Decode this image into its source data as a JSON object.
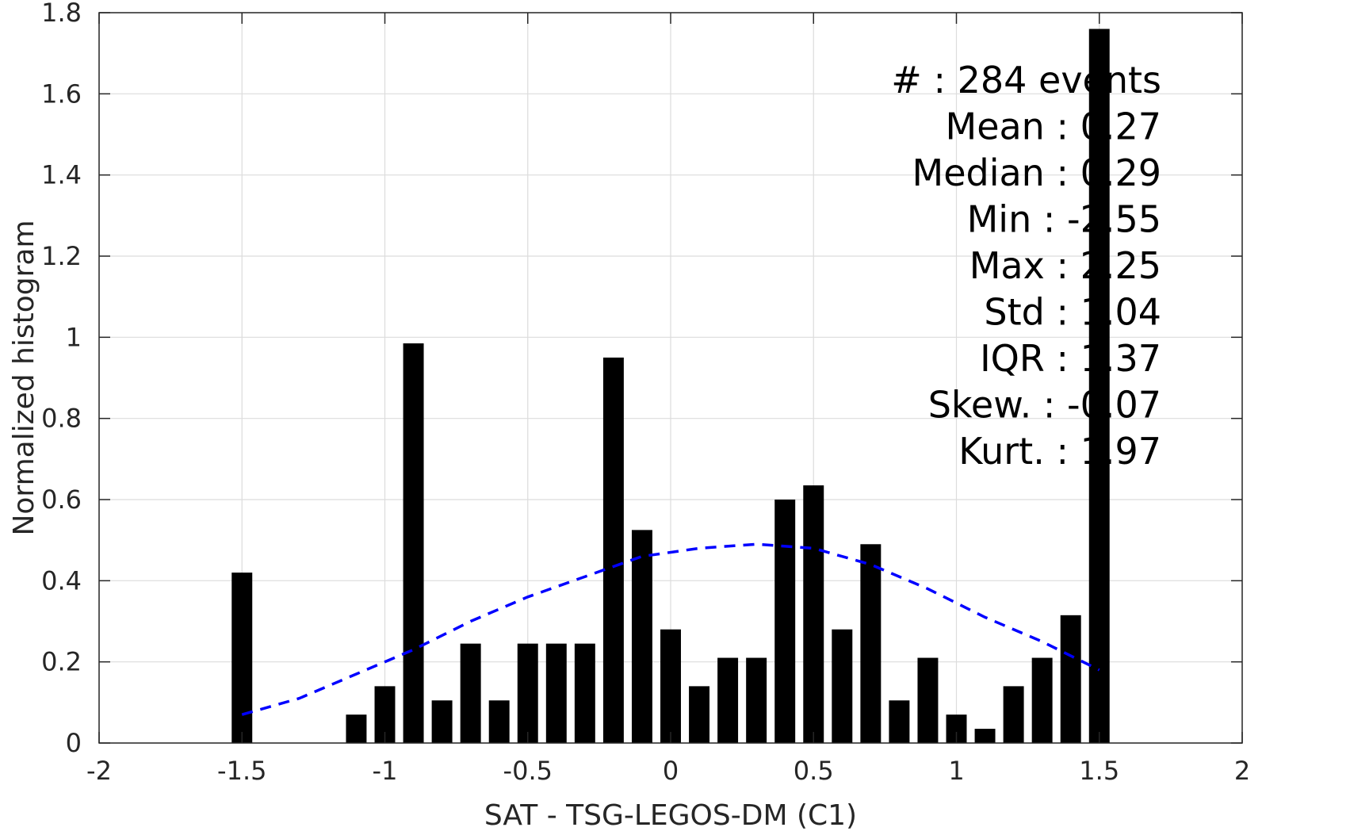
{
  "chart_data": {
    "type": "bar",
    "xlabel": "SAT - TSG-LEGOS-DM (C1)",
    "ylabel": "Normalized histogram",
    "xlim": [
      -2,
      2
    ],
    "ylim": [
      0,
      1.8
    ],
    "xticks": [
      "-2",
      "-1.5",
      "-1",
      "-0.5",
      "0",
      "0.5",
      "1",
      "1.5",
      "2"
    ],
    "yticks": [
      "0",
      "0.2",
      "0.4",
      "0.6",
      "0.8",
      "1",
      "1.2",
      "1.4",
      "1.6",
      "1.8"
    ],
    "grid": true,
    "bar_color": "#000000",
    "bin_width": 0.1,
    "bars": [
      {
        "x": -1.5,
        "y": 0.42
      },
      {
        "x": -1.1,
        "y": 0.07
      },
      {
        "x": -1.0,
        "y": 0.14
      },
      {
        "x": -0.9,
        "y": 0.985
      },
      {
        "x": -0.8,
        "y": 0.105
      },
      {
        "x": -0.7,
        "y": 0.245
      },
      {
        "x": -0.6,
        "y": 0.105
      },
      {
        "x": -0.5,
        "y": 0.245
      },
      {
        "x": -0.4,
        "y": 0.245
      },
      {
        "x": -0.3,
        "y": 0.245
      },
      {
        "x": -0.2,
        "y": 0.95
      },
      {
        "x": -0.1,
        "y": 0.525
      },
      {
        "x": 0.0,
        "y": 0.28
      },
      {
        "x": 0.1,
        "y": 0.14
      },
      {
        "x": 0.2,
        "y": 0.21
      },
      {
        "x": 0.3,
        "y": 0.21
      },
      {
        "x": 0.4,
        "y": 0.6
      },
      {
        "x": 0.5,
        "y": 0.635
      },
      {
        "x": 0.6,
        "y": 0.28
      },
      {
        "x": 0.7,
        "y": 0.49
      },
      {
        "x": 0.8,
        "y": 0.105
      },
      {
        "x": 0.9,
        "y": 0.21
      },
      {
        "x": 1.0,
        "y": 0.07
      },
      {
        "x": 1.1,
        "y": 0.035
      },
      {
        "x": 1.2,
        "y": 0.14
      },
      {
        "x": 1.3,
        "y": 0.21
      },
      {
        "x": 1.4,
        "y": 0.315
      },
      {
        "x": 1.5,
        "y": 1.76
      }
    ],
    "fit_curve": {
      "style": "dashed",
      "color": "#0000ff",
      "points": [
        [
          -1.5,
          0.07
        ],
        [
          -1.3,
          0.11
        ],
        [
          -1.1,
          0.17
        ],
        [
          -0.9,
          0.23
        ],
        [
          -0.7,
          0.3
        ],
        [
          -0.5,
          0.36
        ],
        [
          -0.3,
          0.41
        ],
        [
          -0.1,
          0.46
        ],
        [
          0.1,
          0.48
        ],
        [
          0.3,
          0.49
        ],
        [
          0.5,
          0.48
        ],
        [
          0.7,
          0.44
        ],
        [
          0.9,
          0.38
        ],
        [
          1.1,
          0.31
        ],
        [
          1.3,
          0.25
        ],
        [
          1.5,
          0.18
        ]
      ]
    },
    "stats": [
      {
        "label": "#  ",
        "value": "284 events"
      },
      {
        "label": "Mean ",
        "value": "0.27"
      },
      {
        "label": "Median ",
        "value": "0.29"
      },
      {
        "label": "Min ",
        "value": "-2.55"
      },
      {
        "label": "Max ",
        "value": "2.25"
      },
      {
        "label": "Std ",
        "value": "1.04"
      },
      {
        "label": "IQR ",
        "value": "1.37"
      },
      {
        "label": "Skew. ",
        "value": "-0.07"
      },
      {
        "label": "Kurt. ",
        "value": "1.97"
      }
    ]
  }
}
